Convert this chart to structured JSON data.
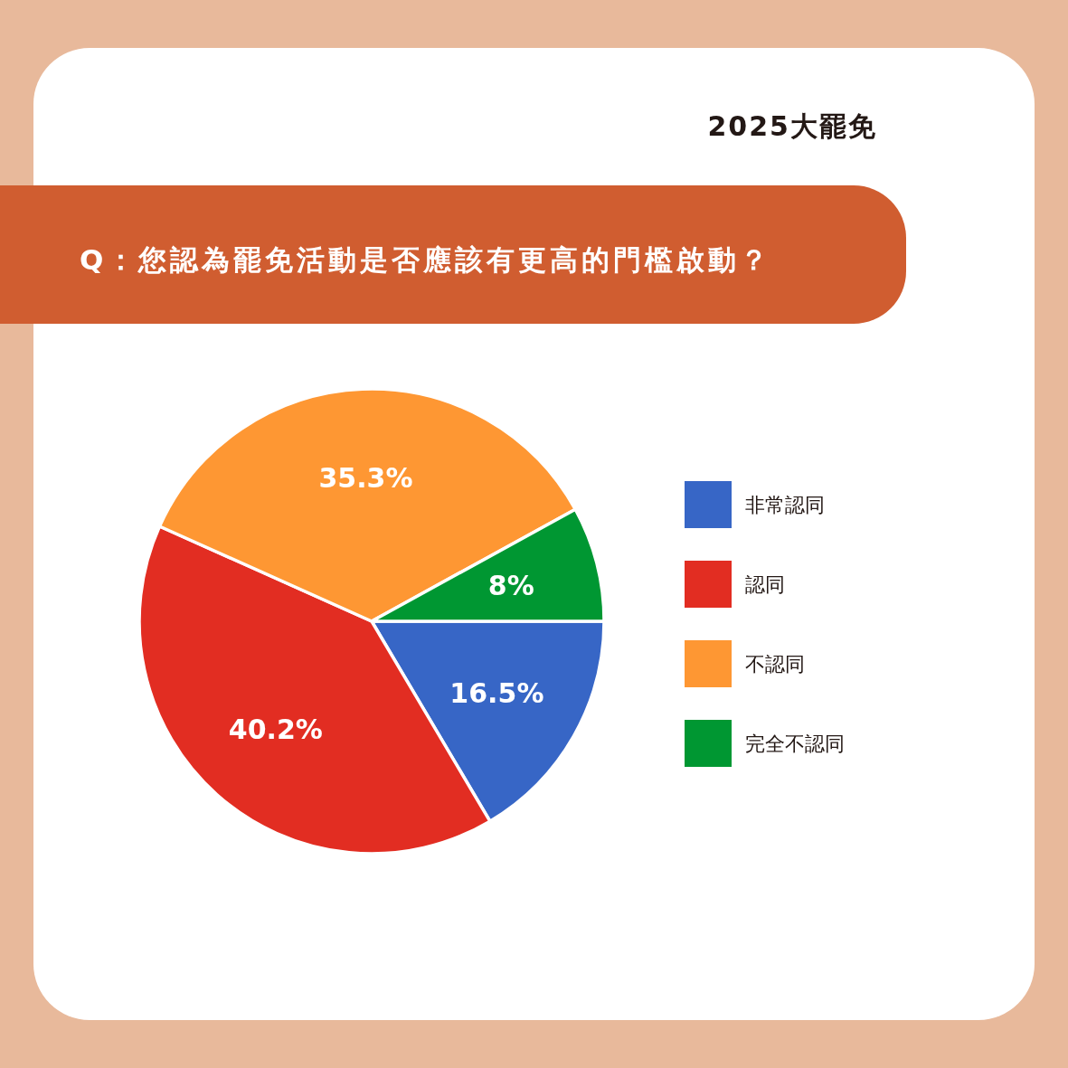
{
  "chart_data": {
    "type": "pie",
    "title": "Q：您認為罷免活動是否應該有更高的門檻啟動？",
    "subtitle": "2025大罷免",
    "categories": [
      "非常認同",
      "認同",
      "不認同",
      "完全不認同"
    ],
    "values": [
      16.5,
      40.2,
      35.3,
      8
    ],
    "colors": [
      "#3766c6",
      "#e22d22",
      "#fe9733",
      "#009732"
    ],
    "value_labels": [
      "16.5%",
      "40.2%",
      "35.3%",
      "8%"
    ],
    "legend": "right"
  }
}
